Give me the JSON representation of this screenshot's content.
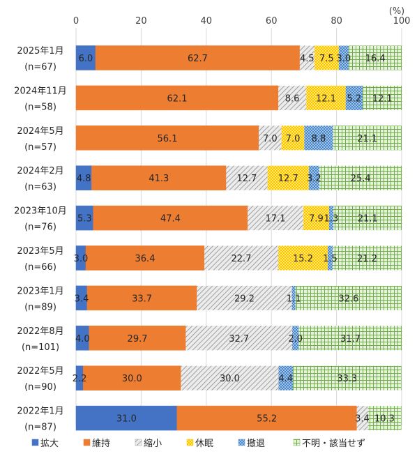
{
  "chart_data": {
    "type": "bar",
    "orientation": "horizontal",
    "stacked": true,
    "unit_label": "(%)",
    "xlim": [
      0,
      100
    ],
    "x_ticks": [
      "0",
      "20",
      "40",
      "60",
      "80",
      "100"
    ],
    "grid": true,
    "legend_position": "bottom",
    "categories": [
      {
        "period": "2025年1月",
        "n": "(n=67)"
      },
      {
        "period": "2024年11月",
        "n": "(n=58)"
      },
      {
        "period": "2024年5月",
        "n": "(n=57)"
      },
      {
        "period": "2024年2月",
        "n": "(n=63)"
      },
      {
        "period": "2023年10月",
        "n": "(n=76)"
      },
      {
        "period": "2023年5月",
        "n": "(n=66)"
      },
      {
        "period": "2023年1月",
        "n": "(n=89)"
      },
      {
        "period": "2022年8月",
        "n": "(n=101)"
      },
      {
        "period": "2022年5月",
        "n": "(n=90)"
      },
      {
        "period": "2022年1月",
        "n": "(n=87)"
      }
    ],
    "series": [
      {
        "name": "拡大",
        "color": "#4472C4",
        "pattern": "solid",
        "values": [
          6.0,
          null,
          null,
          4.8,
          5.3,
          3.0,
          3.4,
          4.0,
          2.2,
          31.0
        ]
      },
      {
        "name": "維持",
        "color": "#ED7D31",
        "pattern": "solid",
        "values": [
          62.7,
          62.1,
          56.1,
          41.3,
          47.4,
          36.4,
          33.7,
          29.7,
          30.0,
          55.2
        ]
      },
      {
        "name": "縮小",
        "color": "#A5A5A5",
        "pattern": "diagonal-hatch",
        "values": [
          4.5,
          8.6,
          7.0,
          12.7,
          17.1,
          22.7,
          29.2,
          32.7,
          30.0,
          3.4
        ]
      },
      {
        "name": "休眠",
        "color": "#FFC000",
        "pattern": "dots",
        "values": [
          7.5,
          12.1,
          7.0,
          12.7,
          7.9,
          15.2,
          null,
          null,
          null,
          null
        ]
      },
      {
        "name": "撤退",
        "color": "#5B9BD5",
        "pattern": "crosshatch",
        "values": [
          3.0,
          5.2,
          8.8,
          3.2,
          1.3,
          1.5,
          1.1,
          2.0,
          4.4,
          null
        ]
      },
      {
        "name": "不明・該当せず",
        "color": "#70AD47",
        "pattern": "grid",
        "values": [
          16.4,
          12.1,
          21.1,
          25.4,
          21.1,
          21.2,
          32.6,
          31.7,
          33.3,
          10.3
        ]
      }
    ],
    "data_labels": [
      [
        "6.0",
        "62.7",
        "4.5",
        "7.5",
        "3.0",
        "16.4"
      ],
      [
        "",
        "62.1",
        "8.6",
        "12.1",
        "5.2",
        "12.1"
      ],
      [
        "",
        "56.1",
        "7.0",
        "7.0",
        "8.8",
        "21.1"
      ],
      [
        "4.8",
        "41.3",
        "12.7",
        "12.7",
        "3.2",
        "25.4"
      ],
      [
        "5.3",
        "47.4",
        "17.1",
        "7.9",
        "1.3",
        "21.1"
      ],
      [
        "3.0",
        "36.4",
        "22.7",
        "15.2",
        "1.5",
        "21.2"
      ],
      [
        "3.4",
        "33.7",
        "29.2",
        "",
        "1.1",
        "32.6"
      ],
      [
        "4.0",
        "29.7",
        "32.7",
        "",
        "2.0",
        "31.7"
      ],
      [
        "2.2",
        "30.0",
        "30.0",
        "",
        "4.4",
        "33.3"
      ],
      [
        "31.0",
        "55.2",
        "3.4",
        "",
        "",
        "10.3"
      ]
    ]
  }
}
